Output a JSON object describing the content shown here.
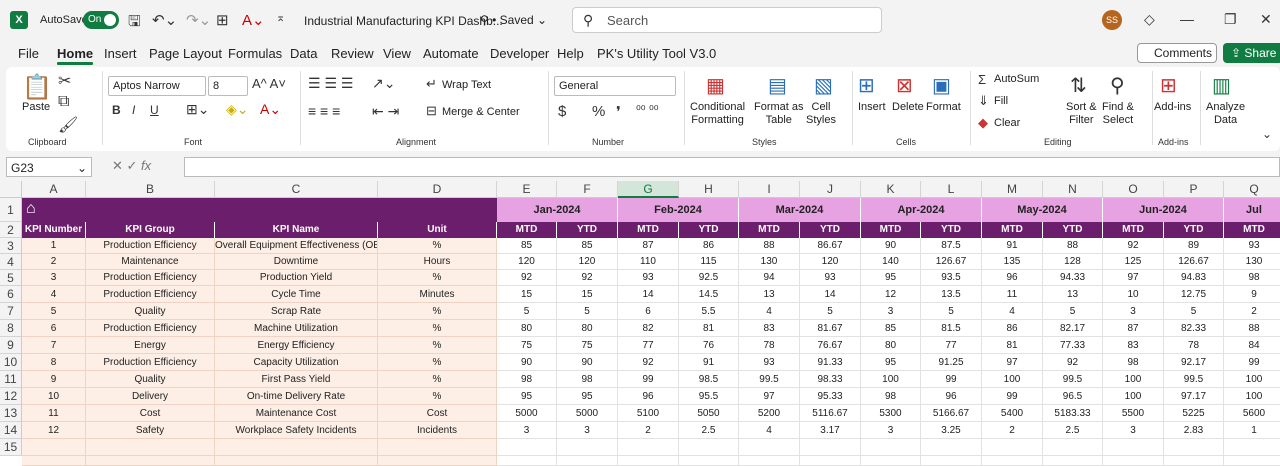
{
  "titlebar": {
    "autosave_label": "AutoSave",
    "toggle_state": "On",
    "doc_title": "Industrial Manufacturing KPI Dashb...",
    "saved": "Saved",
    "search_placeholder": "Search",
    "avatar": "SS"
  },
  "menu": [
    "File",
    "Home",
    "Insert",
    "Page Layout",
    "Formulas",
    "Data",
    "Review",
    "View",
    "Automate",
    "Developer",
    "Help",
    "PK's Utility Tool V3.0"
  ],
  "menu_active": "Home",
  "comments": "Comments",
  "share": "Share",
  "ribbon": {
    "clipboard": {
      "paste": "Paste",
      "group": "Clipboard"
    },
    "font": {
      "name": "Aptos Narrow",
      "size": "8",
      "group": "Font",
      "bold": "B",
      "italic": "I",
      "underline": "U"
    },
    "alignment": {
      "wrap": "Wrap Text",
      "merge": "Merge & Center",
      "group": "Alignment"
    },
    "number": {
      "format": "General",
      "group": "Number",
      "currency": "$",
      "percent": "%",
      "comma": "❜"
    },
    "styles": {
      "cond": "Conditional",
      "cond2": "Formatting",
      "fmt": "Format as",
      "fmt2": "Table",
      "cell": "Cell",
      "cell2": "Styles",
      "group": "Styles"
    },
    "cells": {
      "insert": "Insert",
      "delete": "Delete",
      "format": "Format",
      "group": "Cells"
    },
    "editing": {
      "autosum": "AutoSum",
      "fill": "Fill",
      "clear": "Clear",
      "sort": "Sort &",
      "sort2": "Filter",
      "find": "Find &",
      "find2": "Select",
      "group": "Editing"
    },
    "addins": {
      "label": "Add-ins",
      "group": "Add-ins"
    },
    "analyze": {
      "l1": "Analyze",
      "l2": "Data"
    }
  },
  "formula_bar": {
    "namebox": "G23",
    "fx": "fx"
  },
  "columns": [
    "A",
    "B",
    "C",
    "D",
    "E",
    "F",
    "G",
    "H",
    "I",
    "J",
    "K",
    "L",
    "M",
    "N",
    "O",
    "P",
    "Q"
  ],
  "selected_column": "G",
  "rows": [
    "1",
    "2",
    "3",
    "4",
    "5",
    "6",
    "7",
    "8",
    "9",
    "10",
    "11",
    "12",
    "13",
    "14",
    "15"
  ],
  "headers": {
    "kpi_number": "KPI Number",
    "kpi_group": "KPI Group",
    "kpi_name": "KPI Name",
    "unit": "Unit",
    "mtd": "MTD",
    "ytd": "YTD"
  },
  "months": [
    "Jan-2024",
    "Feb-2024",
    "Mar-2024",
    "Apr-2024",
    "May-2024",
    "Jun-2024",
    "Jul"
  ],
  "kpis": [
    {
      "n": "1",
      "group": "Production Efficiency",
      "name": "Overall Equipment Effectiveness (OEE)",
      "unit": "%",
      "vals": [
        "85",
        "85",
        "87",
        "86",
        "88",
        "86.67",
        "90",
        "87.5",
        "91",
        "88",
        "92",
        "89",
        "93"
      ]
    },
    {
      "n": "2",
      "group": "Maintenance",
      "name": "Downtime",
      "unit": "Hours",
      "vals": [
        "120",
        "120",
        "110",
        "115",
        "130",
        "120",
        "140",
        "126.67",
        "135",
        "128",
        "125",
        "126.67",
        "130"
      ]
    },
    {
      "n": "3",
      "group": "Production Efficiency",
      "name": "Production Yield",
      "unit": "%",
      "vals": [
        "92",
        "92",
        "93",
        "92.5",
        "94",
        "93",
        "95",
        "93.5",
        "96",
        "94.33",
        "97",
        "94.83",
        "98"
      ]
    },
    {
      "n": "4",
      "group": "Production Efficiency",
      "name": "Cycle Time",
      "unit": "Minutes",
      "vals": [
        "15",
        "15",
        "14",
        "14.5",
        "13",
        "14",
        "12",
        "13.5",
        "11",
        "13",
        "10",
        "12.75",
        "9"
      ]
    },
    {
      "n": "5",
      "group": "Quality",
      "name": "Scrap Rate",
      "unit": "%",
      "vals": [
        "5",
        "5",
        "6",
        "5.5",
        "4",
        "5",
        "3",
        "5",
        "4",
        "5",
        "3",
        "5",
        "2"
      ]
    },
    {
      "n": "6",
      "group": "Production Efficiency",
      "name": "Machine Utilization",
      "unit": "%",
      "vals": [
        "80",
        "80",
        "82",
        "81",
        "83",
        "81.67",
        "85",
        "81.5",
        "86",
        "82.17",
        "87",
        "82.33",
        "88"
      ]
    },
    {
      "n": "7",
      "group": "Energy",
      "name": "Energy Efficiency",
      "unit": "%",
      "vals": [
        "75",
        "75",
        "77",
        "76",
        "78",
        "76.67",
        "80",
        "77",
        "81",
        "77.33",
        "83",
        "78",
        "84"
      ]
    },
    {
      "n": "8",
      "group": "Production Efficiency",
      "name": "Capacity Utilization",
      "unit": "%",
      "vals": [
        "90",
        "90",
        "92",
        "91",
        "93",
        "91.33",
        "95",
        "91.25",
        "97",
        "92",
        "98",
        "92.17",
        "99"
      ]
    },
    {
      "n": "9",
      "group": "Quality",
      "name": "First Pass Yield",
      "unit": "%",
      "vals": [
        "98",
        "98",
        "99",
        "98.5",
        "99.5",
        "98.33",
        "100",
        "99",
        "100",
        "99.5",
        "100",
        "99.5",
        "100"
      ]
    },
    {
      "n": "10",
      "group": "Delivery",
      "name": "On-time Delivery Rate",
      "unit": "%",
      "vals": [
        "95",
        "95",
        "96",
        "95.5",
        "97",
        "95.33",
        "98",
        "96",
        "99",
        "96.5",
        "100",
        "97.17",
        "100"
      ]
    },
    {
      "n": "11",
      "group": "Cost",
      "name": "Maintenance Cost",
      "unit": "Cost",
      "vals": [
        "5000",
        "5000",
        "5100",
        "5050",
        "5200",
        "5116.67",
        "5300",
        "5166.67",
        "5400",
        "5183.33",
        "5500",
        "5225",
        "5600"
      ]
    },
    {
      "n": "12",
      "group": "Safety",
      "name": "Workplace Safety Incidents",
      "unit": "Incidents",
      "vals": [
        "3",
        "3",
        "2",
        "2.5",
        "4",
        "3.17",
        "3",
        "3.25",
        "2",
        "2.5",
        "3",
        "2.83",
        "1"
      ]
    }
  ]
}
